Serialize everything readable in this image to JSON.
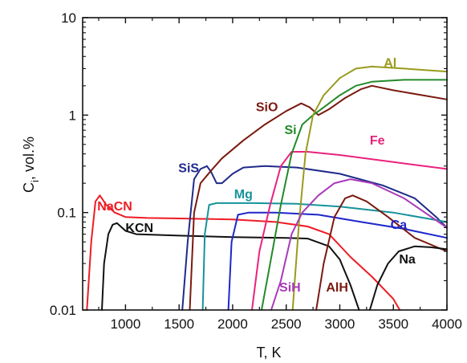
{
  "chart_data": {
    "type": "line",
    "title": "",
    "xlabel": "T, K",
    "ylabel_main": "C",
    "ylabel_sub": "i",
    "ylabel_rest": ", vol.%",
    "xlim": [
      600,
      4000
    ],
    "ylim": [
      0.01,
      10
    ],
    "yscale": "log",
    "grid": false,
    "legend": "inline labels next to curves",
    "x_ticks": [
      1000,
      1500,
      2000,
      2500,
      3000,
      3500,
      4000
    ],
    "x_tick_labels": [
      "1000",
      "1500",
      "2000",
      "2500",
      "3000",
      "3500",
      "4000"
    ],
    "y_ticks": [
      0.01,
      0.1,
      1,
      10
    ],
    "y_tick_labels": [
      "0.01",
      "0.1",
      "1",
      "10"
    ],
    "series": [
      {
        "name": "NaCN",
        "color": "#ee1c25",
        "label_at": [
          900,
          0.105
        ],
        "points": [
          [
            640,
            0.01
          ],
          [
            680,
            0.05
          ],
          [
            720,
            0.13
          ],
          [
            760,
            0.15
          ],
          [
            820,
            0.12
          ],
          [
            900,
            0.1
          ],
          [
            1000,
            0.09
          ],
          [
            1200,
            0.088
          ],
          [
            1500,
            0.087
          ],
          [
            2000,
            0.085
          ],
          [
            2400,
            0.08
          ],
          [
            2700,
            0.072
          ],
          [
            2900,
            0.06
          ],
          [
            3100,
            0.035
          ],
          [
            3300,
            0.022
          ],
          [
            3500,
            0.013
          ],
          [
            3560,
            0.01
          ]
        ]
      },
      {
        "name": "KCN",
        "color": "#111111",
        "label_at": [
          1130,
          0.063
        ],
        "points": [
          [
            780,
            0.01
          ],
          [
            800,
            0.03
          ],
          [
            840,
            0.06
          ],
          [
            880,
            0.075
          ],
          [
            920,
            0.078
          ],
          [
            1000,
            0.065
          ],
          [
            1100,
            0.06
          ],
          [
            1500,
            0.058
          ],
          [
            2000,
            0.056
          ],
          [
            2500,
            0.055
          ],
          [
            2700,
            0.054
          ],
          [
            2900,
            0.045
          ],
          [
            3000,
            0.033
          ],
          [
            3100,
            0.018
          ],
          [
            3180,
            0.01
          ]
        ]
      },
      {
        "name": "SiS",
        "color": "#1f2a8a",
        "label_at": [
          1590,
          0.26
        ],
        "points": [
          [
            1530,
            0.01
          ],
          [
            1580,
            0.05
          ],
          [
            1640,
            0.22
          ],
          [
            1700,
            0.28
          ],
          [
            1760,
            0.3
          ],
          [
            1800,
            0.26
          ],
          [
            1850,
            0.2
          ],
          [
            1900,
            0.2
          ],
          [
            2000,
            0.25
          ],
          [
            2100,
            0.29
          ],
          [
            2300,
            0.3
          ],
          [
            2600,
            0.29
          ],
          [
            3000,
            0.25
          ],
          [
            3400,
            0.19
          ],
          [
            3700,
            0.14
          ],
          [
            3900,
            0.09
          ],
          [
            4000,
            0.07
          ]
        ]
      },
      {
        "name": "SiO",
        "color": "#7a1a10",
        "label_at": [
          2320,
          1.1
        ],
        "points": [
          [
            1600,
            0.01
          ],
          [
            1640,
            0.1
          ],
          [
            1700,
            0.2
          ],
          [
            1800,
            0.27
          ],
          [
            1900,
            0.36
          ],
          [
            2100,
            0.55
          ],
          [
            2300,
            0.8
          ],
          [
            2500,
            1.1
          ],
          [
            2640,
            1.32
          ],
          [
            2720,
            1.2
          ],
          [
            2800,
            1.0
          ],
          [
            2900,
            1.15
          ],
          [
            3050,
            1.5
          ],
          [
            3200,
            1.85
          ],
          [
            3300,
            2.0
          ],
          [
            3500,
            1.8
          ],
          [
            4000,
            1.45
          ]
        ]
      },
      {
        "name": "Mg",
        "color": "#16939a",
        "label_at": [
          2100,
          0.14
        ],
        "points": [
          [
            1720,
            0.01
          ],
          [
            1740,
            0.06
          ],
          [
            1780,
            0.12
          ],
          [
            1850,
            0.125
          ],
          [
            2200,
            0.125
          ],
          [
            2600,
            0.123
          ],
          [
            3000,
            0.115
          ],
          [
            3500,
            0.1
          ],
          [
            4000,
            0.08
          ]
        ]
      },
      {
        "name": "Ca",
        "color": "#1d27c9",
        "label_at": [
          3550,
          0.068
        ],
        "points": [
          [
            1960,
            0.01
          ],
          [
            1990,
            0.05
          ],
          [
            2050,
            0.095
          ],
          [
            2150,
            0.1
          ],
          [
            2400,
            0.1
          ],
          [
            2800,
            0.095
          ],
          [
            3200,
            0.08
          ],
          [
            3600,
            0.068
          ],
          [
            4000,
            0.055
          ]
        ]
      },
      {
        "name": "Fe",
        "color": "#e8237d",
        "label_at": [
          3350,
          0.5
        ],
        "points": [
          [
            2180,
            0.01
          ],
          [
            2250,
            0.04
          ],
          [
            2350,
            0.12
          ],
          [
            2450,
            0.3
          ],
          [
            2550,
            0.42
          ],
          [
            2700,
            0.42
          ],
          [
            3000,
            0.39
          ],
          [
            3500,
            0.33
          ],
          [
            4000,
            0.28
          ]
        ]
      },
      {
        "name": "Si",
        "color": "#238a2a",
        "label_at": [
          2540,
          0.64
        ],
        "points": [
          [
            2270,
            0.01
          ],
          [
            2350,
            0.03
          ],
          [
            2450,
            0.12
          ],
          [
            2550,
            0.4
          ],
          [
            2650,
            0.8
          ],
          [
            2750,
            1.0
          ],
          [
            2850,
            1.2
          ],
          [
            3000,
            1.6
          ],
          [
            3150,
            2.0
          ],
          [
            3300,
            2.2
          ],
          [
            3600,
            2.3
          ],
          [
            4000,
            2.3
          ]
        ]
      },
      {
        "name": "Al",
        "color": "#9a9a1f",
        "label_at": [
          3470,
          3.1
        ],
        "points": [
          [
            2560,
            0.01
          ],
          [
            2620,
            0.08
          ],
          [
            2680,
            0.4
          ],
          [
            2750,
            1.0
          ],
          [
            2850,
            1.6
          ],
          [
            3000,
            2.4
          ],
          [
            3150,
            3.0
          ],
          [
            3300,
            3.15
          ],
          [
            3600,
            3.0
          ],
          [
            4000,
            2.8
          ]
        ]
      },
      {
        "name": "SiH",
        "color": "#a83ab8",
        "label_at": [
          2535,
          0.0155
        ],
        "points": [
          [
            2360,
            0.01
          ],
          [
            2450,
            0.02
          ],
          [
            2550,
            0.06
          ],
          [
            2650,
            0.1
          ],
          [
            2800,
            0.15
          ],
          [
            2950,
            0.2
          ],
          [
            3100,
            0.22
          ],
          [
            3300,
            0.2
          ],
          [
            3600,
            0.14
          ],
          [
            4000,
            0.07
          ]
        ]
      },
      {
        "name": "AlH",
        "color": "#7a1a10",
        "label_at": [
          2975,
          0.0155
        ],
        "points": [
          [
            2780,
            0.01
          ],
          [
            2850,
            0.03
          ],
          [
            2950,
            0.09
          ],
          [
            3050,
            0.14
          ],
          [
            3120,
            0.15
          ],
          [
            3250,
            0.13
          ],
          [
            3450,
            0.09
          ],
          [
            3700,
            0.055
          ],
          [
            4000,
            0.04
          ]
        ]
      },
      {
        "name": "Na",
        "color": "#111111",
        "label_at": [
          3630,
          0.03
        ],
        "points": [
          [
            3280,
            0.01
          ],
          [
            3350,
            0.018
          ],
          [
            3450,
            0.03
          ],
          [
            3550,
            0.04
          ],
          [
            3700,
            0.045
          ],
          [
            3850,
            0.044
          ],
          [
            4000,
            0.042
          ]
        ]
      }
    ]
  }
}
